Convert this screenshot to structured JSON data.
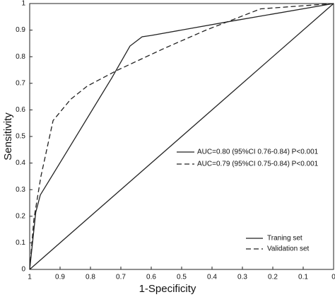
{
  "chart_data": {
    "type": "line",
    "xlabel": "1-Specificity",
    "ylabel": "Sensitivity",
    "xlim": [
      1,
      0
    ],
    "ylim": [
      0,
      1
    ],
    "xticks": [
      1,
      0.9,
      0.8,
      0.7,
      0.6,
      0.5,
      0.4,
      0.3,
      0.2,
      0.1,
      0
    ],
    "yticks": [
      0,
      0.1,
      0.2,
      0.3,
      0.4,
      0.5,
      0.6,
      0.7,
      0.8,
      0.9,
      1
    ],
    "legend": "lower right",
    "series": [
      {
        "name": "Traning set",
        "color": "#222222",
        "line": "solid",
        "x": [
          1,
          0.98,
          0.965,
          0.89,
          0.73,
          0.67,
          0.63,
          0.6,
          0.33,
          0
        ],
        "values": [
          0,
          0.215,
          0.28,
          0.42,
          0.72,
          0.84,
          0.875,
          0.88,
          0.935,
          1
        ]
      },
      {
        "name": "Validation set",
        "color": "#222222",
        "line": "dashed",
        "x": [
          1,
          0.986,
          0.963,
          0.923,
          0.865,
          0.81,
          0.71,
          0.56,
          0.42,
          0.33,
          0.24,
          0
        ],
        "values": [
          0,
          0.19,
          0.35,
          0.56,
          0.64,
          0.69,
          0.75,
          0.83,
          0.9,
          0.94,
          0.98,
          1
        ]
      },
      {
        "color": "#222222",
        "line": "solid",
        "x": [
          1,
          0
        ],
        "values": [
          0,
          1
        ]
      }
    ],
    "annotations": [
      {
        "text": "AUC=0.80 (95%CI 0.76-0.84) P<0.001",
        "line": "solid"
      },
      {
        "text": "AUC=0.79 (95%CI 0.75-0.84) P<0.001",
        "line": "dashed"
      }
    ]
  }
}
